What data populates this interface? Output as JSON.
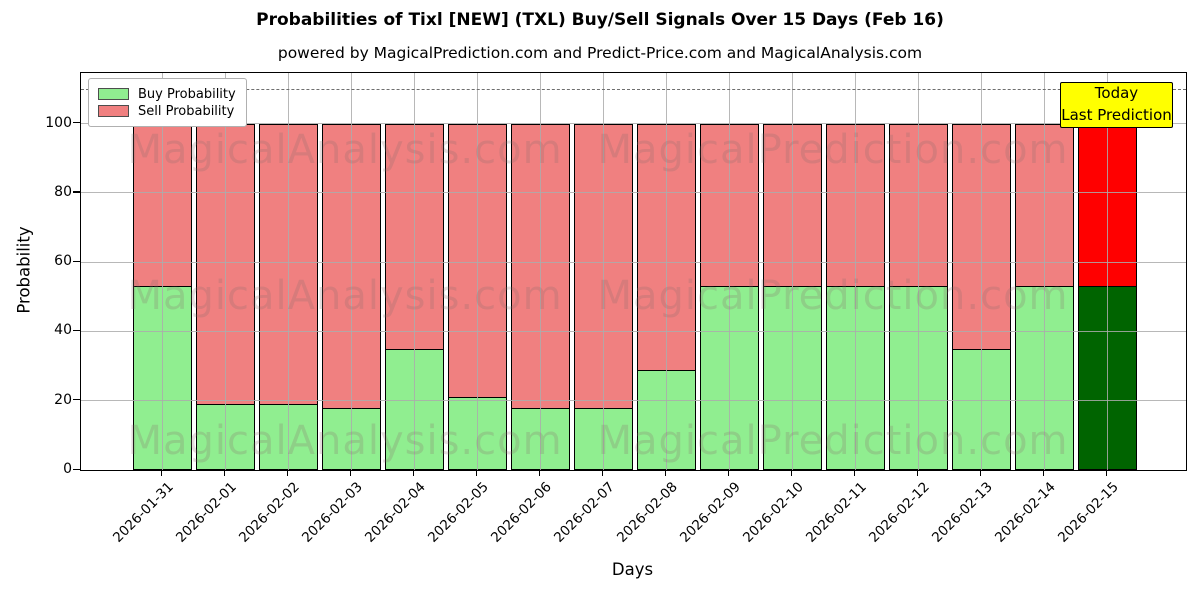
{
  "page": {
    "title": "Probabilities of Tixl [NEW] (TXL) Buy/Sell Signals Over 15 Days (Feb 16)",
    "subtitle": "powered by MagicalPrediction.com and Predict-Price.com and MagicalAnalysis.com"
  },
  "chart_data": {
    "type": "bar",
    "stacked": true,
    "title": "Probabilities of Tixl [NEW] (TXL) Buy/Sell Signals Over 15 Days (Feb 16)",
    "subtitle": "powered by MagicalPrediction.com and Predict-Price.com and MagicalAnalysis.com",
    "xlabel": "Days",
    "ylabel": "Probability",
    "ylim": [
      0,
      114
    ],
    "yticks": [
      0,
      20,
      40,
      60,
      80,
      100
    ],
    "dashed_threshold_y": 110,
    "grid": true,
    "legend_position": "upper left",
    "categories": [
      "2026-01-31",
      "2026-02-01",
      "2026-02-02",
      "2026-02-03",
      "2026-02-04",
      "2026-02-05",
      "2026-02-06",
      "2026-02-07",
      "2026-02-08",
      "2026-02-09",
      "2026-02-10",
      "2026-02-11",
      "2026-02-12",
      "2026-02-13",
      "2026-02-14",
      "2026-02-15"
    ],
    "series": [
      {
        "name": "Buy Probability",
        "color": "#90EE90",
        "values": [
          53,
          19,
          19,
          18,
          35,
          21,
          18,
          18,
          29,
          53,
          53,
          53,
          53,
          35,
          53,
          53
        ]
      },
      {
        "name": "Sell Probability",
        "color": "#F08080",
        "values": [
          47,
          81,
          81,
          82,
          65,
          79,
          82,
          82,
          71,
          47,
          47,
          47,
          47,
          65,
          47,
          47
        ]
      }
    ],
    "today_bar": {
      "category": "2026-02-15",
      "buy_color": "#006400",
      "sell_color": "#FF0000"
    }
  },
  "legend": {
    "items": [
      {
        "label": "Buy Probability",
        "swatch": "#90EE90"
      },
      {
        "label": "Sell Probability",
        "swatch": "#F08080"
      }
    ]
  },
  "annotation_box": {
    "lines": [
      "Today",
      "Last Prediction"
    ],
    "bg": "#FFFF00",
    "border": "#000000"
  },
  "watermarks": {
    "left_text": "MagicalAnalysis.com",
    "right_text": "MagicalPrediction.com"
  },
  "colors": {
    "buy": "#90EE90",
    "sell": "#F08080",
    "today_buy": "#006400",
    "today_sell": "#FF0000",
    "grid": "#ababab",
    "dashed": "#6e6e6e",
    "annotation_bg": "#FFFF00"
  }
}
